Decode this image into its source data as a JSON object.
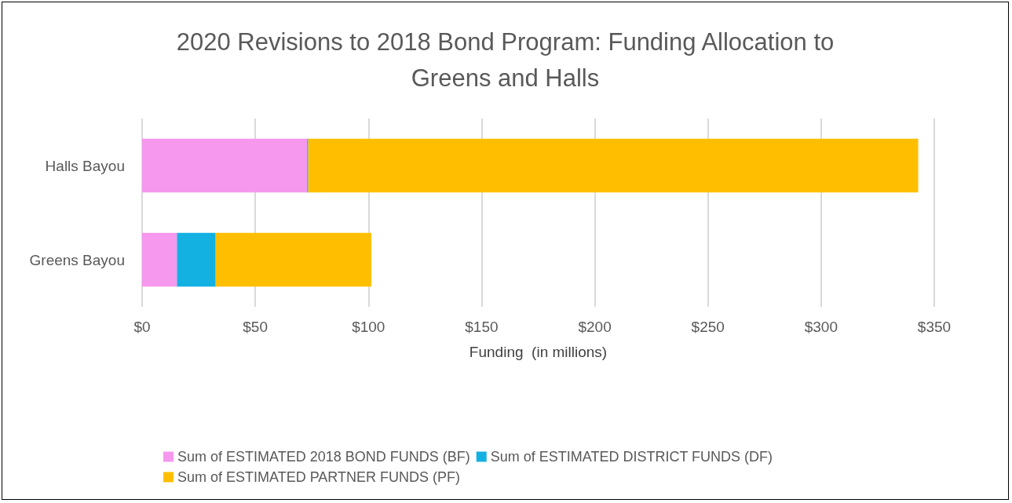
{
  "chart_data": {
    "type": "bar",
    "orientation": "horizontal",
    "stacked": true,
    "title": "2020 Revisions to 2018 Bond Program: Funding Allocation to\nGreens and Halls",
    "xlabel": "Funding  (in millions)",
    "categories": [
      "Halls Bayou",
      "Greens Bayou"
    ],
    "series": [
      {
        "name": "Sum of ESTIMATED 2018 BOND FUNDS (BF)",
        "color": "#f598ee",
        "values": [
          72.9,
          15.4
        ]
      },
      {
        "name": "Sum of ESTIMATED DISTRICT FUNDS (DF)",
        "color": "#13b0e2",
        "values": [
          0.5,
          17.1
        ]
      },
      {
        "name": "Sum of ESTIMATED PARTNER FUNDS (PF)",
        "color": "#ffbf00",
        "values": [
          269.5,
          68.8
        ]
      }
    ],
    "xlim": [
      0,
      350
    ],
    "xticks": [
      {
        "value": 0,
        "label": "$0"
      },
      {
        "value": 50,
        "label": "$50"
      },
      {
        "value": 100,
        "label": "$100"
      },
      {
        "value": 150,
        "label": "$150"
      },
      {
        "value": 200,
        "label": "$200"
      },
      {
        "value": 250,
        "label": "$250"
      },
      {
        "value": 300,
        "label": "$300"
      },
      {
        "value": 350,
        "label": "$350"
      }
    ],
    "grid": "x",
    "legend": "bottom"
  }
}
